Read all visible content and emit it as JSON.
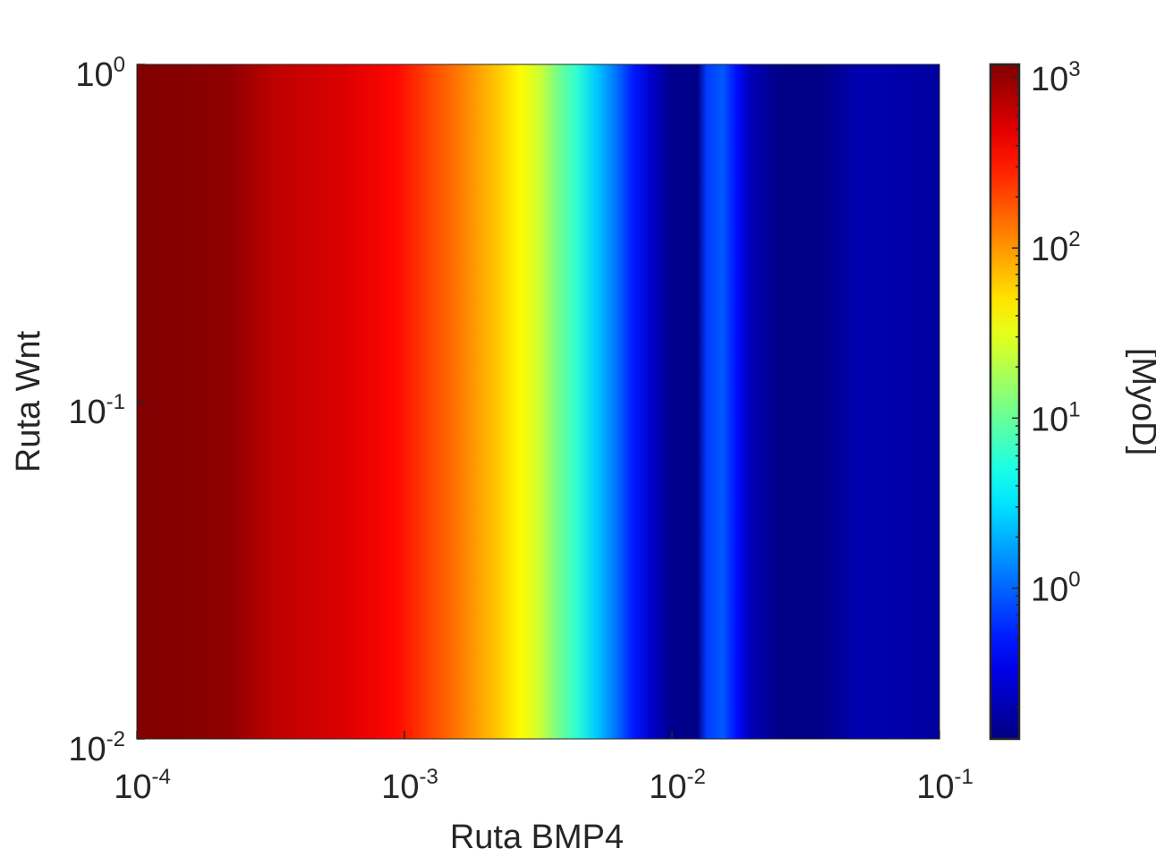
{
  "chart_data": {
    "type": "heatmap",
    "title": "",
    "xlabel": "Ruta BMP4",
    "ylabel": "Ruta Wnt",
    "xscale": "log",
    "yscale": "log",
    "xlim": [
      0.0001,
      0.1
    ],
    "ylim": [
      0.01,
      1
    ],
    "x_ticks": [
      {
        "base": "10",
        "exp": "-4",
        "value": 0.0001
      },
      {
        "base": "10",
        "exp": "-3",
        "value": 0.001
      },
      {
        "base": "10",
        "exp": "-2",
        "value": 0.01
      },
      {
        "base": "10",
        "exp": "-1",
        "value": 0.1
      }
    ],
    "y_ticks": [
      {
        "base": "10",
        "exp": "0",
        "value": 1
      },
      {
        "base": "10",
        "exp": "-1",
        "value": 0.1
      },
      {
        "base": "10",
        "exp": "-2",
        "value": 0.01
      }
    ],
    "colormap": "jet",
    "colorbar": {
      "label": "[MyoD]",
      "scale": "log",
      "range": [
        0.13,
        1200
      ],
      "ticks": [
        {
          "base": "10",
          "exp": "3",
          "value": 1000
        },
        {
          "base": "10",
          "exp": "2",
          "value": 100
        },
        {
          "base": "10",
          "exp": "1",
          "value": 10
        },
        {
          "base": "10",
          "exp": "0",
          "value": 1
        }
      ]
    },
    "note_values": "MyoD concentration varies only with Ruta BMP4; constant along Ruta Wnt",
    "profile": [
      {
        "x": 0.0001,
        "myod": 1200
      },
      {
        "x": 0.00022,
        "myod": 1050
      },
      {
        "x": 0.00032,
        "myod": 700
      },
      {
        "x": 0.0006,
        "myod": 520
      },
      {
        "x": 0.00093,
        "myod": 360
      },
      {
        "x": 0.0011,
        "myod": 260
      },
      {
        "x": 0.0013,
        "myod": 190
      },
      {
        "x": 0.0016,
        "myod": 130
      },
      {
        "x": 0.0019,
        "myod": 90
      },
      {
        "x": 0.0023,
        "myod": 60
      },
      {
        "x": 0.0027,
        "myod": 40
      },
      {
        "x": 0.0032,
        "myod": 25
      },
      {
        "x": 0.0037,
        "myod": 12
      },
      {
        "x": 0.0044,
        "myod": 6
      },
      {
        "x": 0.0052,
        "myod": 2.5
      },
      {
        "x": 0.0061,
        "myod": 1.2
      },
      {
        "x": 0.0072,
        "myod": 0.5
      },
      {
        "x": 0.0084,
        "myod": 0.25
      },
      {
        "x": 0.0099,
        "myod": 0.15
      },
      {
        "x": 0.0125,
        "myod": 0.14
      },
      {
        "x": 0.0135,
        "myod": 0.7
      },
      {
        "x": 0.0155,
        "myod": 0.9
      },
      {
        "x": 0.0175,
        "myod": 0.45
      },
      {
        "x": 0.0195,
        "myod": 0.22
      },
      {
        "x": 0.025,
        "myod": 0.14
      },
      {
        "x": 0.035,
        "myod": 0.135
      },
      {
        "x": 0.05,
        "myod": 0.2
      },
      {
        "x": 0.07,
        "myod": 0.19
      },
      {
        "x": 0.1,
        "myod": 0.17
      }
    ],
    "grid": false
  }
}
